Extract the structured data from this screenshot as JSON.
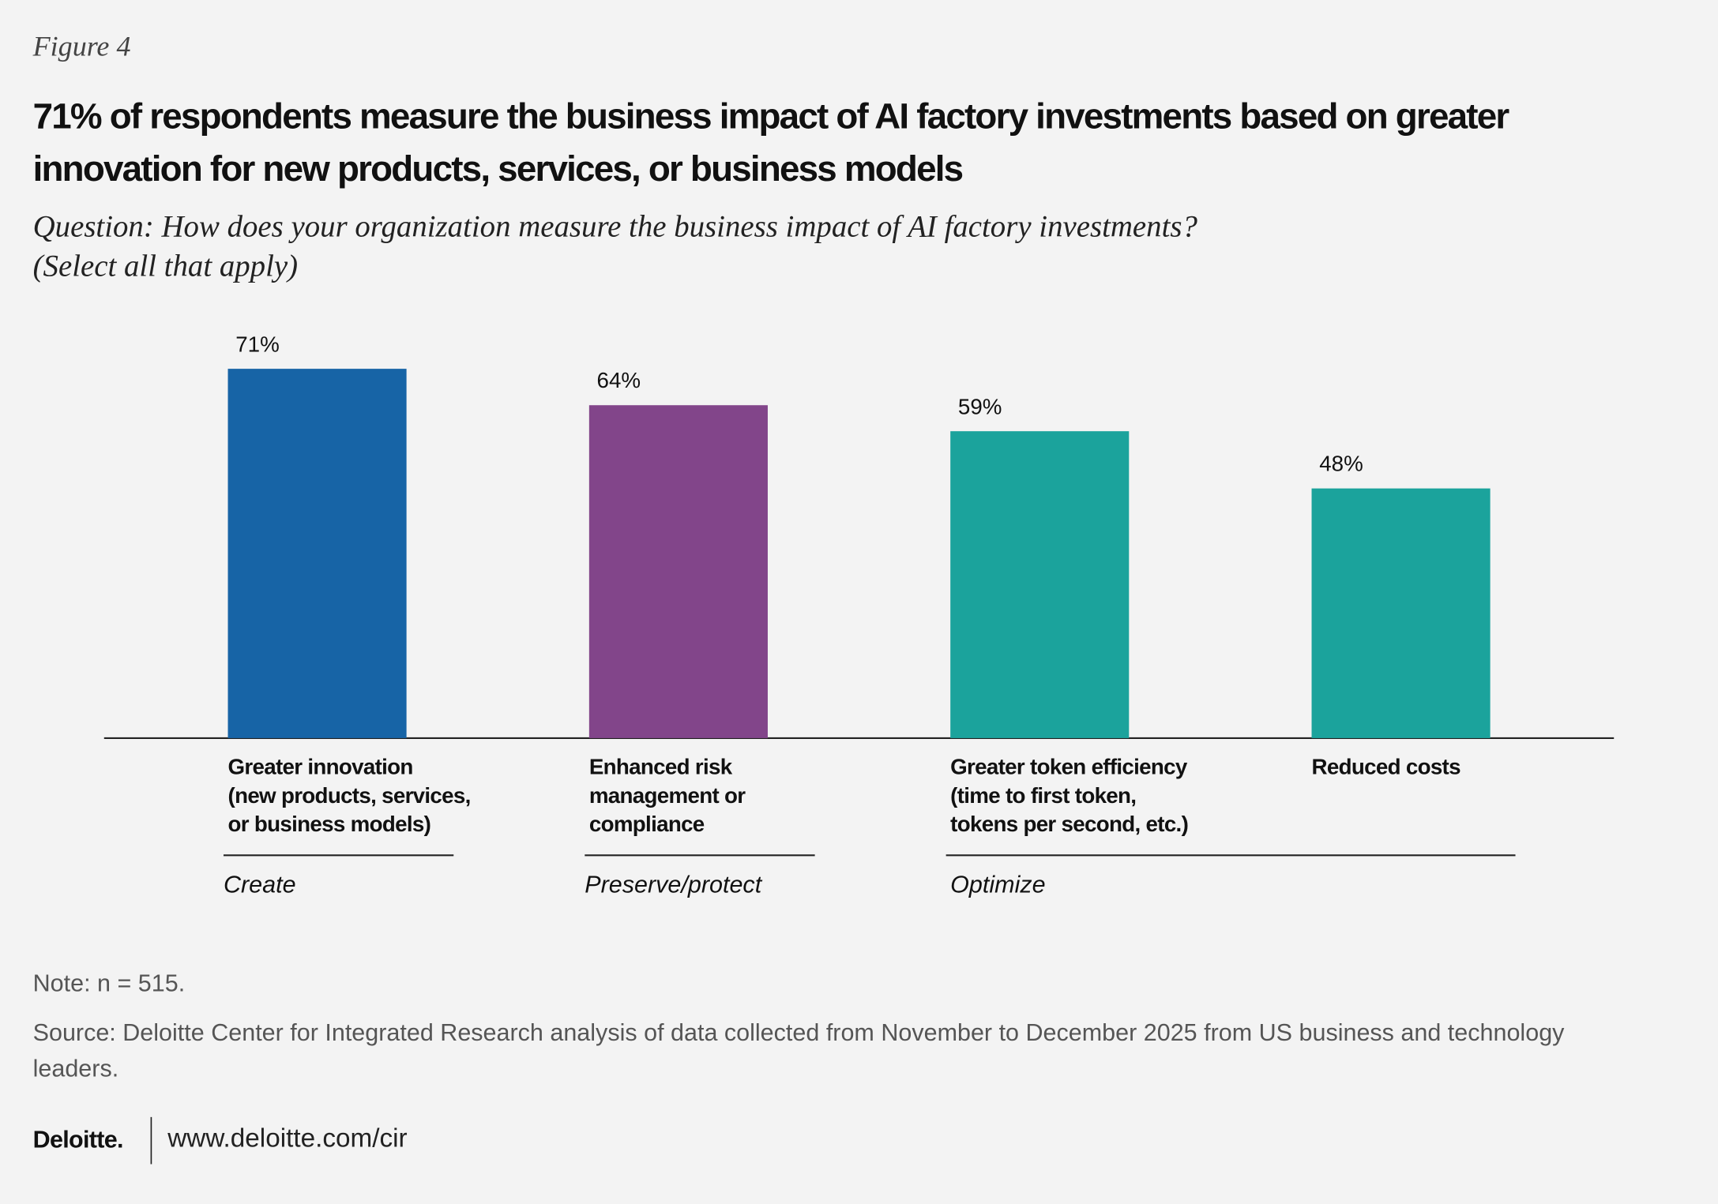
{
  "chart_data": {
    "type": "bar",
    "figure_label": "Figure 4",
    "title": "71% of respondents measure the business impact of AI factory investments based on greater innovation for new products, services, or business models",
    "subtitle": "Question: How does your organization measure the business impact of AI factory investments?\n(Select all that apply)",
    "categories": [
      "Greater innovation\n(new products, services,\nor business models)",
      "Enhanced risk\nmanagement or\ncompliance",
      "Greater token efficiency\n(time to first token,\ntokens per second, etc.)",
      "Reduced costs"
    ],
    "values": [
      71,
      64,
      59,
      48
    ],
    "value_labels": [
      "71%",
      "64%",
      "59%",
      "48%"
    ],
    "colors": [
      "#1764a6",
      "#82458a",
      "#1ba39c",
      "#1ba39c"
    ],
    "groups": [
      {
        "label": "Create",
        "span": 1
      },
      {
        "label": "Preserve/protect",
        "span": 1
      },
      {
        "label": "Optimize",
        "span": 2
      }
    ],
    "note": "Note: n = 515.",
    "source": "Source: Deloitte Center for Integrated Research analysis of data collected from November to December 2025 from US business and technology leaders."
  },
  "footer": {
    "brand": "Deloitte.",
    "url": "www.deloitte.com/cir"
  }
}
